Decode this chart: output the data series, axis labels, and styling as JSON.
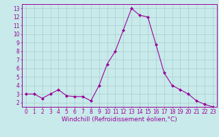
{
  "x": [
    0,
    1,
    2,
    3,
    4,
    5,
    6,
    7,
    8,
    9,
    10,
    11,
    12,
    13,
    14,
    15,
    16,
    17,
    18,
    19,
    20,
    21,
    22,
    23
  ],
  "y": [
    3.0,
    3.0,
    2.5,
    3.0,
    3.5,
    2.8,
    2.7,
    2.7,
    2.2,
    4.0,
    6.5,
    8.0,
    10.5,
    13.0,
    12.2,
    12.0,
    8.8,
    5.5,
    4.0,
    3.5,
    3.0,
    2.2,
    1.8,
    1.5
  ],
  "line_color": "#990099",
  "marker": "D",
  "marker_size": 2,
  "bg_color": "#c8eaea",
  "grid_color": "#a8cccc",
  "xlabel": "Windchill (Refroidissement éolien,°C)",
  "xlim": [
    -0.5,
    23.5
  ],
  "ylim": [
    1.5,
    13.5
  ],
  "yticks": [
    2,
    3,
    4,
    5,
    6,
    7,
    8,
    9,
    10,
    11,
    12,
    13
  ],
  "xticks": [
    0,
    1,
    2,
    3,
    4,
    5,
    6,
    7,
    8,
    9,
    10,
    11,
    12,
    13,
    14,
    15,
    16,
    17,
    18,
    19,
    20,
    21,
    22,
    23
  ],
  "xlabel_fontsize": 6.5,
  "tick_fontsize": 5.5,
  "tick_color": "#990099",
  "label_color": "#990099",
  "spine_color": "#990099"
}
